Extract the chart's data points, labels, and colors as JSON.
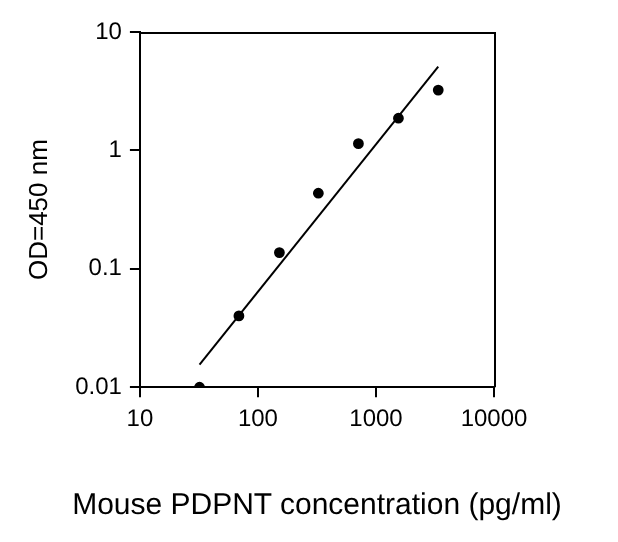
{
  "chart_data": {
    "type": "scatter",
    "xlabel": "Mouse PDPNT concentration (pg/ml)",
    "ylabel": "OD=450 nm",
    "log": "xy",
    "grid": false,
    "legend": false,
    "marker": "circle",
    "xlim": [
      10,
      10000
    ],
    "xticks": [
      10,
      100,
      1000,
      10000
    ],
    "ylim": [
      0.01,
      10
    ],
    "yticks": [
      0.01,
      0.1,
      1,
      10
    ],
    "series": [
      {
        "color": "#000000",
        "x": [
          32,
          69,
          152,
          325,
          710,
          1550,
          3370
        ],
        "values": [
          0.01,
          0.04,
          0.137,
          0.435,
          1.14,
          1.87,
          3.23
        ]
      },
      {
        "type": "line",
        "color": "#000000",
        "x": [
          32,
          3370
        ],
        "values": [
          0.0155,
          5.1
        ],
        "marker": "none",
        "line_style": "solid"
      }
    ]
  }
}
